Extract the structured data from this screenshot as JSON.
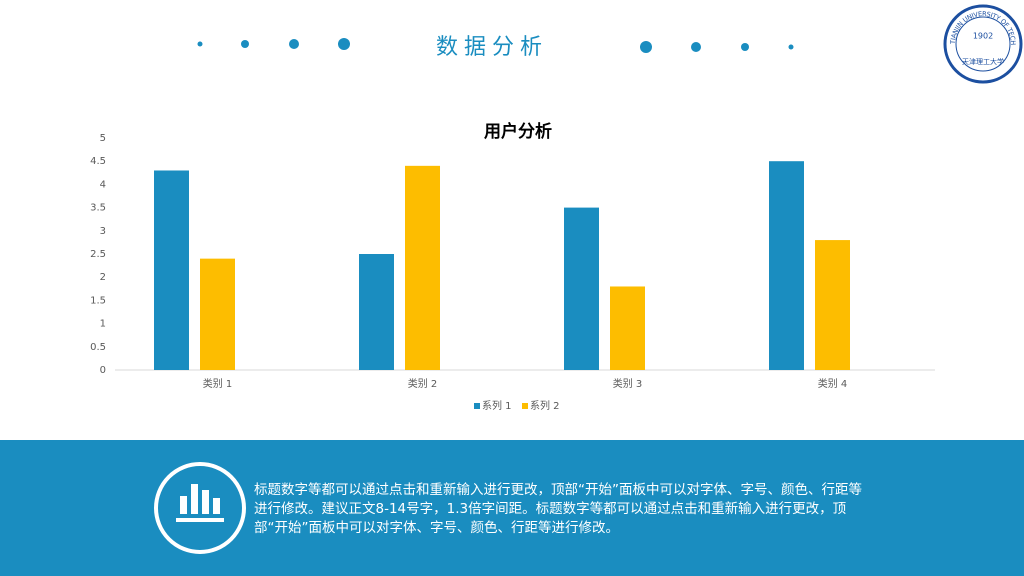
{
  "header": {
    "title": "数据分析"
  },
  "logo": {
    "ring": "TIANJIN UNIVERSITY OF TECHNOLOGY",
    "year": "1902",
    "name": "天津理工大学"
  },
  "chart_data": {
    "type": "bar",
    "title": "用户分析",
    "categories": [
      "类别 1",
      "类别 2",
      "类别 3",
      "类别 4"
    ],
    "series": [
      {
        "name": "系列 1",
        "color": "#1a8dc0",
        "values": [
          4.3,
          2.5,
          3.5,
          4.5
        ]
      },
      {
        "name": "系列 2",
        "color": "#fdbd00",
        "values": [
          2.4,
          4.4,
          1.8,
          2.8
        ]
      }
    ],
    "ylim": [
      0,
      5
    ],
    "yticks": [
      0,
      0.5,
      1,
      1.5,
      2,
      2.5,
      3,
      3.5,
      4,
      4.5,
      5
    ],
    "grid": false,
    "legend": "bottom"
  },
  "footer": {
    "text": "标题数字等都可以通过点击和重新输入进行更改，顶部“开始”面板中可以对字体、字号、颜色、行距等进行修改。建议正文8-14号字，1.3倍字间距。标题数字等都可以通过点击和重新输入进行更改，顶部“开始”面板中可以对字体、字号、颜色、行距等进行修改。"
  }
}
